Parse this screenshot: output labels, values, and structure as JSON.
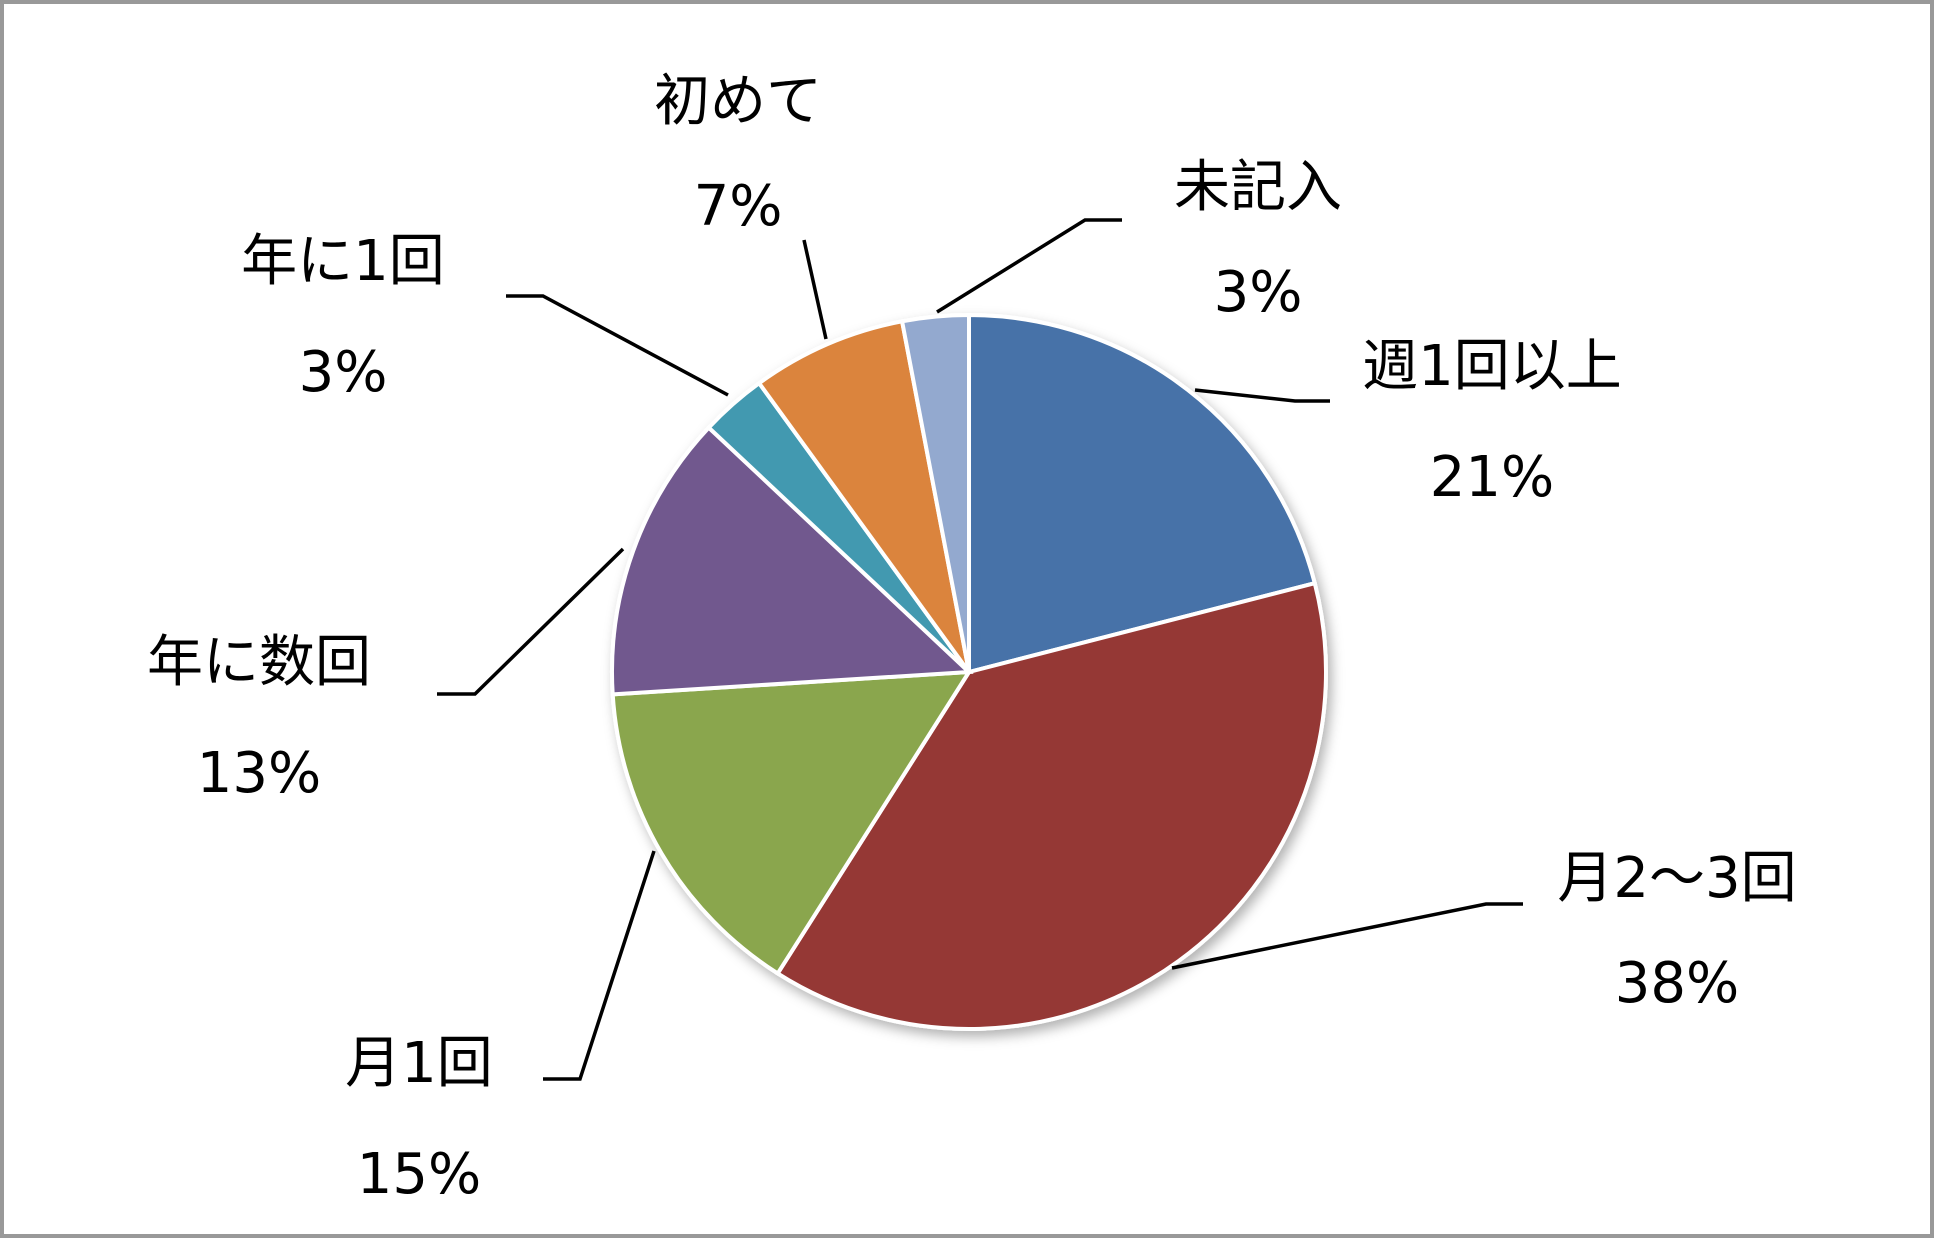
{
  "chart_data": {
    "type": "pie",
    "categories": [
      "週1回以上",
      "月2～3回",
      "月1回",
      "年に数回",
      "年に1回",
      "初めて",
      "未記入"
    ],
    "values": [
      21,
      38,
      15,
      13,
      3,
      7,
      3
    ],
    "value_labels": [
      "21%",
      "38%",
      "15%",
      "13%",
      "3%",
      "7%",
      "3%"
    ],
    "colors": [
      "#4672a8",
      "#953735",
      "#8aa64e",
      "#71598e",
      "#4299b0",
      "#db843d",
      "#93a9cf"
    ]
  }
}
